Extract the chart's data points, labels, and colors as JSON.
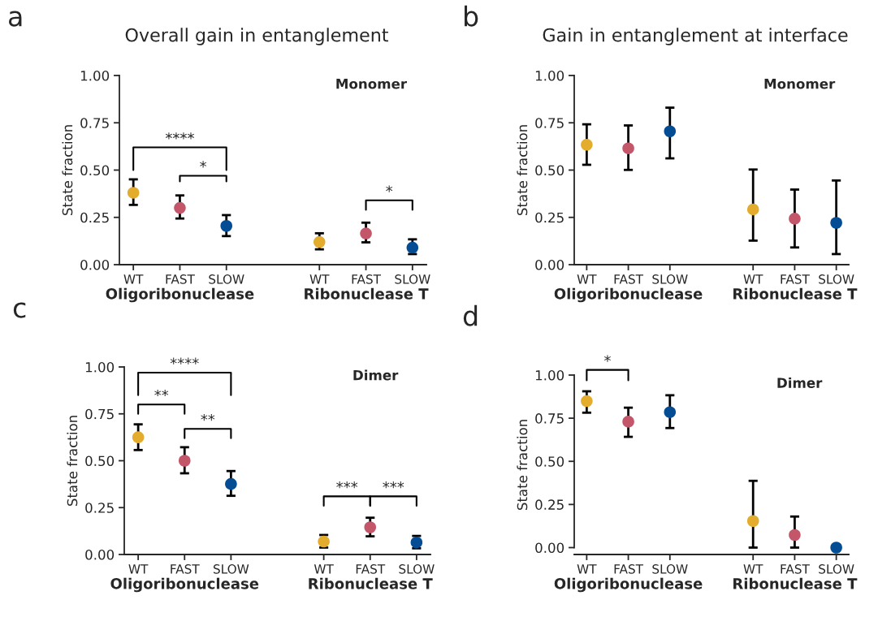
{
  "chart_data": [
    {
      "type": "scatter",
      "title": "Overall gain in entanglement",
      "ylabel": "State fraction",
      "marker": "circle",
      "categories": [
        "WT",
        "FAST",
        "SLOW",
        null,
        "WT",
        "FAST",
        "SLOW"
      ],
      "values": [
        0.38,
        0.3,
        0.205,
        null,
        0.12,
        0.165,
        0.09
      ],
      "colors": [
        "#e3ac2c",
        "#c4566a",
        "#044c94",
        null,
        "#e3ac2c",
        "#c4566a",
        "#044c94"
      ],
      "errors": [
        [
          0.316,
          0.451
        ],
        [
          0.244,
          0.366
        ],
        [
          0.151,
          0.262
        ],
        null,
        [
          0.081,
          0.166
        ],
        [
          0.118,
          0.222
        ],
        [
          0.056,
          0.134
        ]
      ],
      "ylim": [
        0,
        1.0
      ],
      "yticks": [
        {
          "value": 0,
          "label": "0.00"
        },
        {
          "value": 0.25,
          "label": "0.25"
        },
        {
          "value": 0.5,
          "label": "0.50"
        },
        {
          "value": 0.75,
          "label": "0.75"
        },
        {
          "value": 1.0,
          "label": "1.00"
        }
      ],
      "annotations": [
        "a",
        "Monomer",
        "Oligoribonuclease",
        "Ribonuclease T",
        "****",
        "*",
        "*"
      ]
    },
    {
      "type": "scatter",
      "title": "Gain in entanglement at interface",
      "ylabel": "State fraction",
      "marker": "circle",
      "categories": [
        "WT",
        "FAST",
        "SLOW",
        null,
        "WT",
        "FAST",
        "SLOW"
      ],
      "values": [
        0.634,
        0.615,
        0.705,
        null,
        0.292,
        0.243,
        0.221
      ],
      "colors": [
        "#e3ac2c",
        "#c4566a",
        "#044c94",
        null,
        "#e3ac2c",
        "#c4566a",
        "#044c94"
      ],
      "errors": [
        [
          0.528,
          0.742
        ],
        [
          0.501,
          0.736
        ],
        [
          0.562,
          0.83
        ],
        null,
        [
          0.127,
          0.503
        ],
        [
          0.091,
          0.397
        ],
        [
          0.056,
          0.445
        ]
      ],
      "ylim": [
        0,
        1.0
      ],
      "yticks": [
        {
          "value": 0,
          "label": "0.00"
        },
        {
          "value": 0.25,
          "label": "0.25"
        },
        {
          "value": 0.5,
          "label": "0.50"
        },
        {
          "value": 0.75,
          "label": "0.75"
        },
        {
          "value": 1.0,
          "label": "1.00"
        }
      ],
      "annotations": [
        "b",
        "Monomer",
        "Oligoribonuclease",
        "Ribonuclease T"
      ]
    },
    {
      "type": "scatter",
      "ylabel": "State fraction",
      "marker": "circle",
      "categories": [
        "WT",
        "FAST",
        "SLOW",
        null,
        "WT",
        "FAST",
        "SLOW"
      ],
      "values": [
        0.625,
        0.5,
        0.376,
        null,
        0.069,
        0.145,
        0.064
      ],
      "colors": [
        "#e3ac2c",
        "#c4566a",
        "#044c94",
        null,
        "#e3ac2c",
        "#c4566a",
        "#044c94"
      ],
      "errors": [
        [
          0.557,
          0.694
        ],
        [
          0.433,
          0.572
        ],
        [
          0.313,
          0.445
        ],
        null,
        [
          0.037,
          0.104
        ],
        [
          0.097,
          0.196
        ],
        [
          0.033,
          0.099
        ]
      ],
      "ylim": [
        0,
        1.0
      ],
      "yticks": [
        {
          "value": 0,
          "label": "0.00"
        },
        {
          "value": 0.25,
          "label": "0.25"
        },
        {
          "value": 0.5,
          "label": "0.50"
        },
        {
          "value": 0.75,
          "label": "0.75"
        },
        {
          "value": 1.0,
          "label": "1.00"
        }
      ],
      "annotations": [
        "c",
        "Dimer",
        "Oligoribonuclease",
        "Ribonuclease T",
        "****",
        "**",
        "**",
        "***",
        "***"
      ]
    },
    {
      "type": "scatter",
      "ylabel": "State fraction",
      "marker": "circle",
      "categories": [
        "WT",
        "FAST",
        "SLOW",
        null,
        "WT",
        "FAST",
        "SLOW"
      ],
      "values": [
        0.849,
        0.73,
        0.785,
        null,
        0.154,
        0.073,
        0.0
      ],
      "colors": [
        "#e3ac2c",
        "#c4566a",
        "#044c94",
        null,
        "#e3ac2c",
        "#c4566a",
        "#044c94"
      ],
      "errors": [
        [
          0.782,
          0.906
        ],
        [
          0.642,
          0.811
        ],
        [
          0.693,
          0.883
        ],
        null,
        [
          0.0,
          0.387
        ],
        [
          0.0,
          0.18
        ],
        null
      ],
      "ylim": [
        -0.04,
        1.0
      ],
      "yticks": [
        {
          "value": 0,
          "label": "0.00"
        },
        {
          "value": 0.25,
          "label": "0.25"
        },
        {
          "value": 0.5,
          "label": "0.50"
        },
        {
          "value": 0.75,
          "label": "0.75"
        },
        {
          "value": 1.0,
          "label": "1.00"
        }
      ],
      "annotations": [
        "d",
        "Dimer",
        "Oligoribonuclease",
        "Ribonuclease T",
        "*"
      ]
    }
  ]
}
